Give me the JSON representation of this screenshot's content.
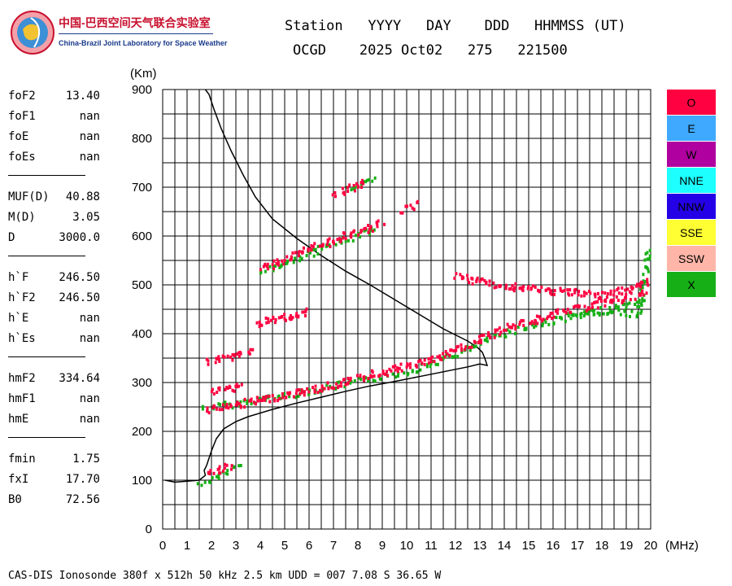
{
  "header": {
    "lab_name_cn": "中国-巴西空间天气联合实验室",
    "lab_name_en": "China-Brazil Joint Laboratory for Space Weather",
    "labels": "Station   YYYY   DAY    DDD   HHMMSS (UT)",
    "values": "OCGD    2025 Oct02   275   221500"
  },
  "params": [
    {
      "name": "foF2",
      "value": "13.40"
    },
    {
      "name": "foF1",
      "value": "nan"
    },
    {
      "name": "foE",
      "value": "nan"
    },
    {
      "name": "foEs",
      "value": "nan"
    },
    {
      "sep": true
    },
    {
      "name": "MUF(D)",
      "value": "40.88"
    },
    {
      "name": "M(D)",
      "value": "3.05"
    },
    {
      "name": "D",
      "value": "3000.0"
    },
    {
      "sep": true
    },
    {
      "name": "h`F",
      "value": "246.50"
    },
    {
      "name": "h`F2",
      "value": "246.50"
    },
    {
      "name": "h`E",
      "value": "nan"
    },
    {
      "name": "h`Es",
      "value": "nan"
    },
    {
      "sep": true
    },
    {
      "name": "hmF2",
      "value": "334.64"
    },
    {
      "name": "hmF1",
      "value": "nan"
    },
    {
      "name": "hmE",
      "value": "nan"
    },
    {
      "sep": true
    },
    {
      "name": "fmin",
      "value": "1.75"
    },
    {
      "name": "fxI",
      "value": "17.70"
    },
    {
      "name": "B0",
      "value": "72.56"
    }
  ],
  "legend": [
    {
      "label": "O",
      "color": "#ff0040"
    },
    {
      "label": "E",
      "color": "#3ea9ff"
    },
    {
      "label": "W",
      "color": "#b000a0"
    },
    {
      "label": "NNE",
      "color": "#1effff"
    },
    {
      "label": "NNW",
      "color": "#2400e6"
    },
    {
      "label": "SSE",
      "color": "#ffff33"
    },
    {
      "label": "SSW",
      "color": "#ffb6a8"
    },
    {
      "label": "X",
      "color": "#16b016"
    }
  ],
  "footer": "CAS-DIS Ionosonde 380f x 512h 50 kHz 2.5 km UDD = 007 7.08 S 36.65 W",
  "chart_data": {
    "type": "scatter",
    "xlabel": "(MHz)",
    "ylabel": "(Km)",
    "xlim": [
      0,
      20
    ],
    "ylim": [
      0,
      900
    ],
    "xticks": [
      0,
      1,
      2,
      3,
      4,
      5,
      6,
      7,
      8,
      9,
      10,
      11,
      12,
      13,
      14,
      15,
      16,
      17,
      18,
      19,
      20
    ],
    "yticks": [
      0,
      100,
      200,
      300,
      400,
      500,
      600,
      700,
      800,
      900
    ],
    "grid": true,
    "profile_curve": {
      "x": [
        0.1,
        0.5,
        1.0,
        1.5,
        1.75,
        1.7,
        1.8,
        1.9,
        2.0,
        2.2,
        2.5,
        3.0,
        3.5,
        4.5,
        5.5,
        6.5,
        7.5,
        8.5,
        9.5,
        10.5,
        11.5,
        12.5,
        13.0,
        13.3,
        13.2,
        13.1,
        12.9,
        12.5,
        11.5,
        10.5,
        9.5,
        8.5,
        7.5,
        6.5,
        5.5,
        4.5,
        3.8,
        3.3,
        2.8,
        2.4,
        2.1,
        1.9,
        1.75
      ],
      "y": [
        100,
        96,
        98,
        100,
        110,
        120,
        130,
        145,
        160,
        185,
        205,
        220,
        230,
        245,
        258,
        270,
        282,
        293,
        302,
        312,
        322,
        332,
        338,
        335,
        350,
        362,
        372,
        385,
        410,
        440,
        470,
        500,
        528,
        560,
        595,
        635,
        680,
        725,
        775,
        820,
        860,
        890,
        900
      ]
    },
    "o_traces": [
      {
        "x": [
          1.8,
          2.5,
          3.5,
          5.0,
          6.5,
          8.0,
          9.5,
          10.5,
          11.5,
          12.3,
          13.0,
          14.0,
          15.5,
          17.0,
          18.5,
          19.8
        ],
        "y": [
          248,
          253,
          262,
          277,
          292,
          312,
          330,
          343,
          358,
          375,
          390,
          415,
          435,
          455,
          470,
          485
        ]
      },
      {
        "x": [
          2.0,
          2.6,
          3.3
        ],
        "y": [
          285,
          290,
          300
        ]
      },
      {
        "x": [
          1.8,
          2.4,
          3.0,
          3.6
        ],
        "y": [
          345,
          352,
          360,
          368
        ]
      },
      {
        "x": [
          4.0,
          5.0,
          6.0,
          7.0,
          8.0,
          9.0
        ],
        "y": [
          535,
          555,
          575,
          595,
          612,
          630
        ]
      },
      {
        "x": [
          3.8,
          4.5,
          5.2,
          6.0
        ],
        "y": [
          420,
          432,
          440,
          448
        ]
      },
      {
        "x": [
          7.0,
          7.6,
          8.3
        ],
        "y": [
          690,
          700,
          712
        ]
      },
      {
        "x": [
          9.8,
          10.4
        ],
        "y": [
          655,
          670
        ]
      },
      {
        "x": [
          1.8,
          2.3,
          2.8
        ],
        "y": [
          120,
          125,
          130
        ]
      },
      {
        "x": [
          12.0,
          14.0,
          16.0,
          18.0,
          19.9
        ],
        "y": [
          520,
          500,
          490,
          480,
          510
        ]
      }
    ],
    "x_traces": [
      {
        "x": [
          1.6,
          2.5,
          4.0,
          6.0,
          8.0,
          10.0,
          12.0,
          14.0,
          16.0,
          18.0,
          19.9
        ],
        "y": [
          250,
          256,
          268,
          285,
          305,
          325,
          360,
          405,
          430,
          450,
          470
        ]
      },
      {
        "x": [
          1.5,
          2.0,
          2.8,
          3.3
        ],
        "y": [
          95,
          105,
          125,
          135
        ]
      },
      {
        "x": [
          4.0,
          5.0,
          6.0,
          7.0,
          8.0,
          8.7
        ],
        "y": [
          530,
          548,
          565,
          588,
          605,
          622
        ]
      },
      {
        "x": [
          7.5,
          8.2,
          8.8
        ],
        "y": [
          700,
          710,
          718
        ]
      },
      {
        "x": [
          16.5,
          17.5,
          18.5,
          19.5,
          19.9
        ],
        "y": [
          440,
          445,
          450,
          440,
          585
        ]
      }
    ]
  }
}
